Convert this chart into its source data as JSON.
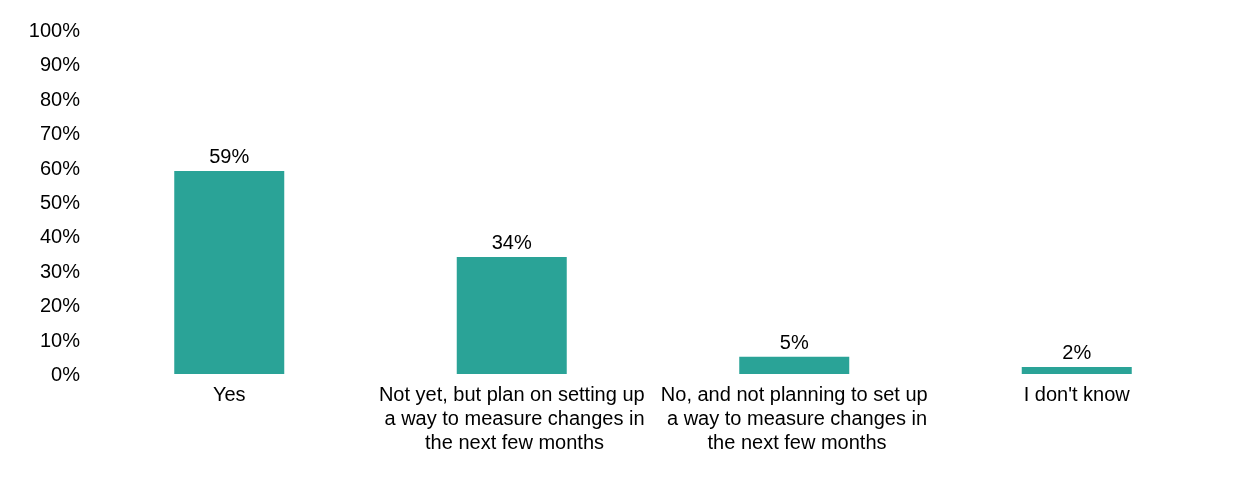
{
  "chart_data": {
    "type": "bar",
    "categories": [
      "Yes",
      "Not yet, but plan on setting up a way to measure changes in the next few months",
      "No, and not planning to set up a way to measure changes in the next few months",
      "I don't know"
    ],
    "values": [
      59,
      34,
      5,
      2
    ],
    "value_labels": [
      "59%",
      "34%",
      "5%",
      "2%"
    ],
    "color": "#2aa397",
    "ylim": [
      0,
      100
    ],
    "yticks": [
      {
        "value": 0,
        "label": "0%"
      },
      {
        "value": 10,
        "label": "10%"
      },
      {
        "value": 20,
        "label": "20%"
      },
      {
        "value": 30,
        "label": "30%"
      },
      {
        "value": 40,
        "label": "40%"
      },
      {
        "value": 50,
        "label": "50%"
      },
      {
        "value": 60,
        "label": "60%"
      },
      {
        "value": 70,
        "label": "70%"
      },
      {
        "value": 80,
        "label": "80%"
      },
      {
        "value": 90,
        "label": "90%"
      },
      {
        "value": 100,
        "label": "100%"
      }
    ],
    "grid": false
  }
}
